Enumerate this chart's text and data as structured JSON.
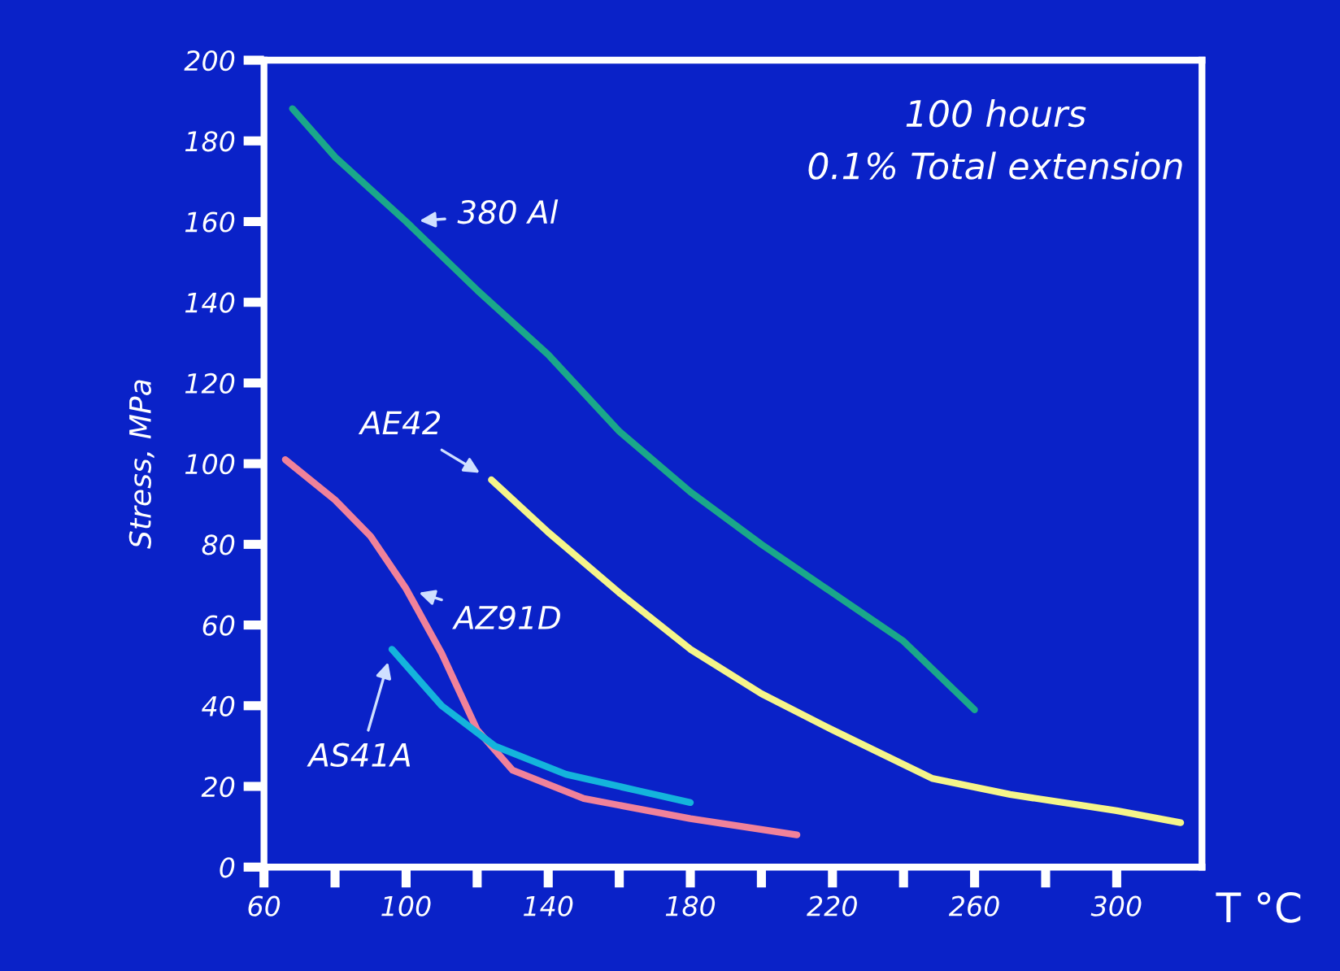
{
  "chart_data": {
    "type": "line",
    "xlabel": "T °C",
    "ylabel": "Stress, MPa",
    "annotations": [
      "100 hours",
      "0.1% Total extension"
    ],
    "xlim": [
      60,
      324
    ],
    "ylim": [
      0,
      200
    ],
    "xticks": [
      60,
      {
        "value": 80,
        "label": null
      },
      100,
      {
        "value": 120,
        "label": null
      },
      140,
      {
        "value": 160,
        "label": null
      },
      180,
      {
        "value": 200,
        "label": null
      },
      220,
      {
        "value": 240,
        "label": null
      },
      260,
      {
        "value": 280,
        "label": null
      },
      300
    ],
    "yticks": [
      0,
      20,
      40,
      60,
      80,
      100,
      120,
      140,
      160,
      180,
      200
    ],
    "grid": false,
    "legend": false,
    "marker": "none",
    "line_style": "solid",
    "series": [
      {
        "name": "380 Al",
        "color": "#1aa88a",
        "x": [
          68,
          80,
          100,
          120,
          140,
          160,
          180,
          200,
          220,
          240,
          260
        ],
        "values": [
          188,
          176,
          160,
          143,
          127,
          108,
          93,
          80,
          68,
          56,
          39
        ]
      },
      {
        "name": "AE42",
        "color": "#f5f58a",
        "x": [
          124,
          140,
          160,
          180,
          200,
          220,
          248,
          270,
          300,
          318
        ],
        "values": [
          96,
          83,
          68,
          54,
          43,
          34,
          22,
          18,
          14,
          11
        ]
      },
      {
        "name": "AZ91D",
        "color": "#f0829a",
        "x": [
          66,
          80,
          90,
          100,
          110,
          120,
          130,
          150,
          180,
          210
        ],
        "values": [
          101,
          91,
          82,
          69,
          53,
          34,
          24,
          17,
          12,
          8
        ]
      },
      {
        "name": "AS41A",
        "color": "#14b4dc",
        "x": [
          96,
          110,
          125,
          145,
          165,
          180
        ],
        "values": [
          54,
          40,
          30,
          23,
          19,
          16
        ]
      }
    ]
  }
}
